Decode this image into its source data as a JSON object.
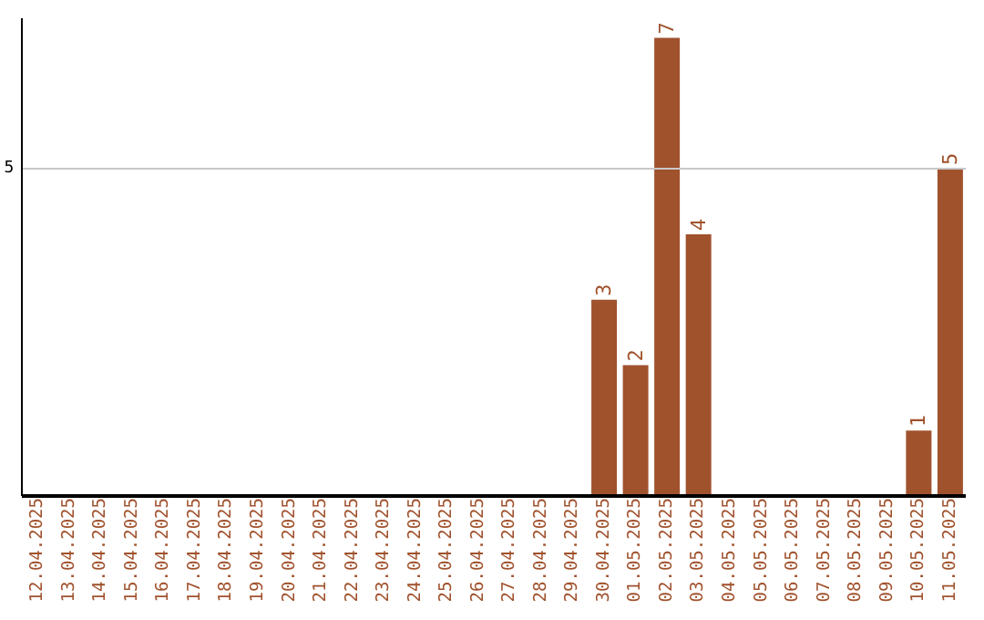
{
  "chart_data": {
    "type": "bar",
    "categories": [
      "12.04.2025",
      "13.04.2025",
      "14.04.2025",
      "15.04.2025",
      "16.04.2025",
      "17.04.2025",
      "18.04.2025",
      "19.04.2025",
      "20.04.2025",
      "21.04.2025",
      "22.04.2025",
      "23.04.2025",
      "24.04.2025",
      "25.04.2025",
      "26.04.2025",
      "27.04.2025",
      "28.04.2025",
      "29.04.2025",
      "30.04.2025",
      "01.05.2025",
      "02.05.2025",
      "03.05.2025",
      "04.05.2025",
      "05.05.2025",
      "06.05.2025",
      "07.05.2025",
      "08.05.2025",
      "09.05.2025",
      "10.05.2025",
      "11.05.2025"
    ],
    "values": [
      null,
      null,
      null,
      null,
      null,
      null,
      null,
      null,
      null,
      null,
      null,
      null,
      null,
      null,
      null,
      null,
      null,
      null,
      3,
      2,
      7,
      4,
      null,
      null,
      null,
      null,
      null,
      null,
      1,
      5
    ],
    "data_labels": true,
    "color": "#a0522d",
    "ylim": [
      0,
      7.3
    ],
    "ref_lines": [
      {
        "axis": "y",
        "value": 5,
        "label": "5",
        "color": "#c8c8c8"
      }
    ]
  }
}
